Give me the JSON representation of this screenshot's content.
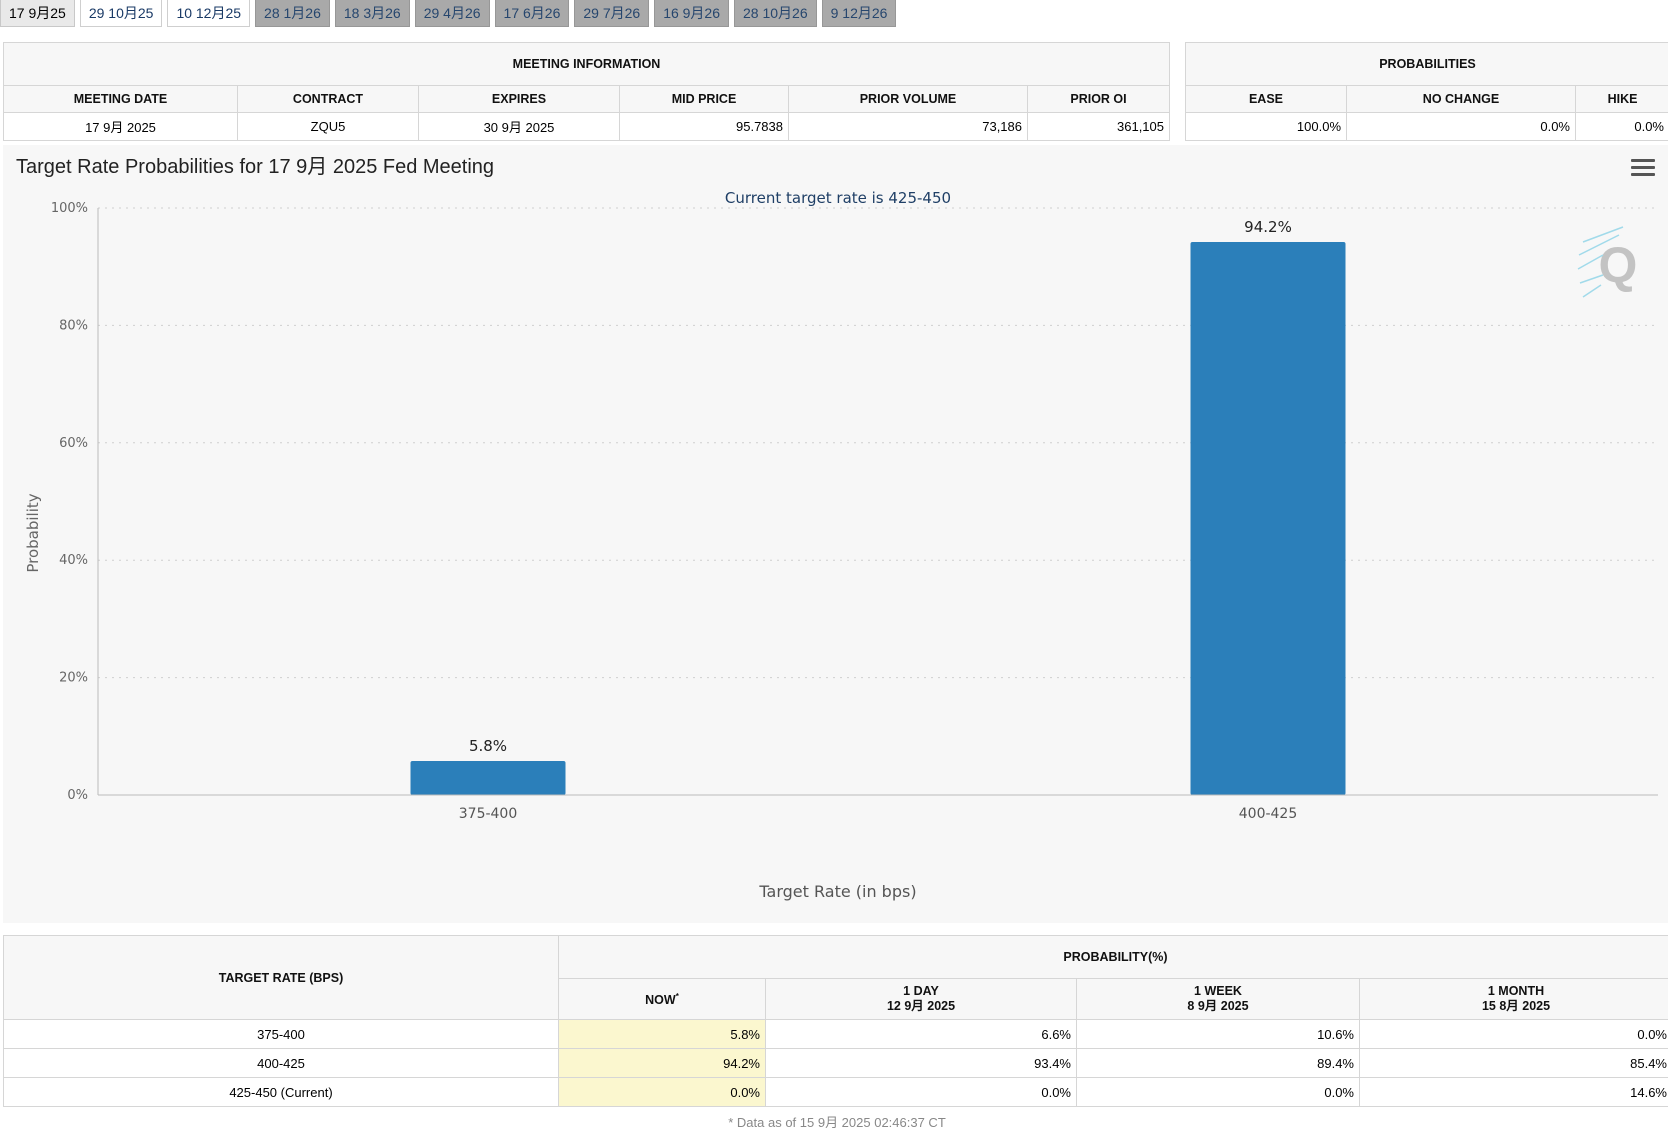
{
  "tabs": [
    {
      "label": "17 9月25",
      "state": "active"
    },
    {
      "label": "29 10月25",
      "state": "normal"
    },
    {
      "label": "10 12月25",
      "state": "normal"
    },
    {
      "label": "28 1月26",
      "state": "future"
    },
    {
      "label": "18 3月26",
      "state": "future"
    },
    {
      "label": "29 4月26",
      "state": "future"
    },
    {
      "label": "17 6月26",
      "state": "future"
    },
    {
      "label": "29 7月26",
      "state": "future"
    },
    {
      "label": "16 9月26",
      "state": "future"
    },
    {
      "label": "28 10月26",
      "state": "future"
    },
    {
      "label": "9 12月26",
      "state": "future"
    }
  ],
  "meeting_info": {
    "title": "MEETING INFORMATION",
    "headers": [
      "MEETING DATE",
      "CONTRACT",
      "EXPIRES",
      "MID PRICE",
      "PRIOR VOLUME",
      "PRIOR OI"
    ],
    "row": [
      "17 9月 2025",
      "ZQU5",
      "30 9月 2025",
      "95.7838",
      "73,186",
      "361,105"
    ]
  },
  "probabilities": {
    "title": "PROBABILITIES",
    "headers": [
      "EASE",
      "NO CHANGE",
      "HIKE"
    ],
    "row": [
      "100.0%",
      "0.0%",
      "0.0%"
    ]
  },
  "chart_data": {
    "type": "bar",
    "title": "Target Rate Probabilities for 17 9月 2025 Fed Meeting",
    "subtitle": "Current target rate is 425-450",
    "xlabel": "Target Rate (in bps)",
    "ylabel": "Probability",
    "categories": [
      "375-400",
      "400-425"
    ],
    "values": [
      5.8,
      94.2
    ],
    "data_labels": [
      "5.8%",
      "94.2%"
    ],
    "ylim": [
      0,
      100
    ],
    "yticks": [
      "0%",
      "20%",
      "40%",
      "60%",
      "80%",
      "100%"
    ],
    "bar_color": "#2b7fba",
    "grid": true
  },
  "rate_table": {
    "target_header": "TARGET RATE (BPS)",
    "prob_header": "PROBABILITY(%)",
    "columns": [
      {
        "label": "NOW",
        "sub": ""
      },
      {
        "label": "1 DAY",
        "sub": "12 9月 2025"
      },
      {
        "label": "1 WEEK",
        "sub": "8 9月 2025"
      },
      {
        "label": "1 MONTH",
        "sub": "15 8月 2025"
      }
    ],
    "now_marker": "*",
    "rows": [
      {
        "rate": "375-400",
        "now": "5.8%",
        "day": "6.6%",
        "week": "10.6%",
        "month": "0.0%"
      },
      {
        "rate": "400-425",
        "now": "94.2%",
        "day": "93.4%",
        "week": "89.4%",
        "month": "85.4%"
      },
      {
        "rate": "425-450 (Current)",
        "now": "0.0%",
        "day": "0.0%",
        "week": "0.0%",
        "month": "14.6%"
      }
    ],
    "footnote": "* Data as of 15 9月 2025 02:46:37 CT"
  }
}
